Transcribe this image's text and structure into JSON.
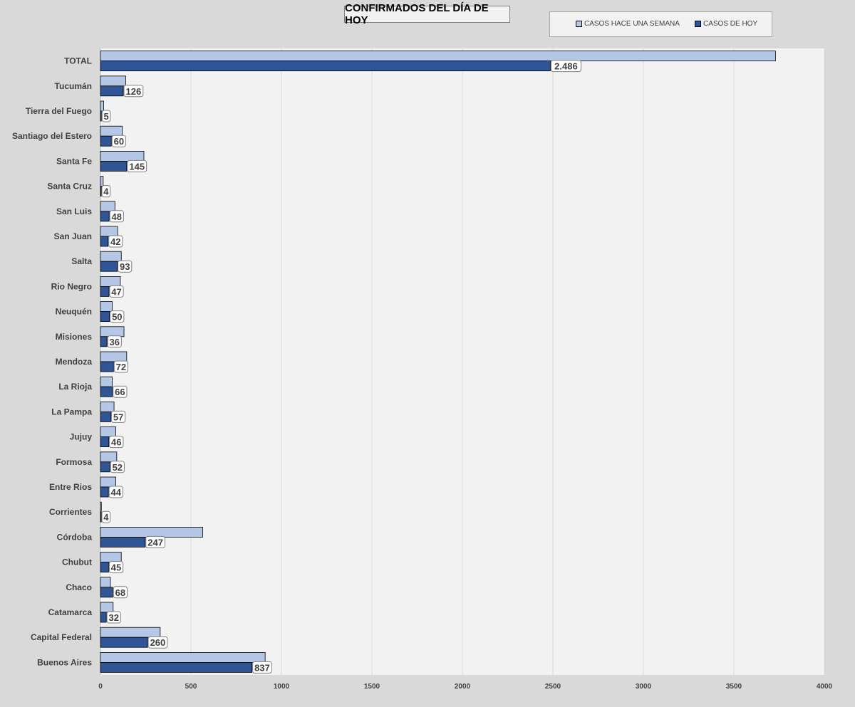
{
  "chart_data": {
    "type": "bar",
    "orientation": "horizontal",
    "title": "CONFIRMADOS DEL DÍA DE HOY",
    "xlabel": "",
    "ylabel": "",
    "xlim": [
      0,
      4000
    ],
    "xticks": [
      0,
      500,
      1000,
      1500,
      2000,
      2500,
      3000,
      3500,
      4000
    ],
    "grid": true,
    "legend_position": "top-right",
    "categories": [
      "TOTAL",
      "Tucumán",
      "Tierra del Fuego",
      "Santiago del Estero",
      "Santa Fe",
      "Santa Cruz",
      "San Luis",
      "San Juan",
      "Salta",
      "Rio Negro",
      "Neuquén",
      "Misiones",
      "Mendoza",
      "La Rioja",
      "La Pampa",
      "Jujuy",
      "Formosa",
      "Entre Rios",
      "Corrientes",
      "Córdoba",
      "Chubut",
      "Chaco",
      "Catamarca",
      "Capital Federal",
      "Buenos Aires"
    ],
    "series": [
      {
        "name": "CASOS HACE UNA SEMANA",
        "color": "#b4c7e7",
        "values": [
          3730,
          140,
          18,
          120,
          240,
          15,
          80,
          95,
          115,
          110,
          65,
          130,
          145,
          65,
          75,
          85,
          90,
          85,
          5,
          565,
          115,
          55,
          70,
          330,
          910
        ]
      },
      {
        "name": "CASOS DE HOY",
        "color": "#2f5597",
        "values": [
          2486,
          126,
          5,
          60,
          145,
          4,
          48,
          42,
          93,
          47,
          50,
          36,
          72,
          66,
          57,
          46,
          52,
          44,
          4,
          247,
          45,
          68,
          32,
          260,
          837
        ],
        "labels": [
          "2.486",
          "126",
          "5",
          "60",
          "145",
          "4",
          "48",
          "42",
          "93",
          "47",
          "50",
          "36",
          "72",
          "66",
          "57",
          "46",
          "52",
          "44",
          "4",
          "247",
          "45",
          "68",
          "32",
          "260",
          "837"
        ]
      }
    ]
  }
}
